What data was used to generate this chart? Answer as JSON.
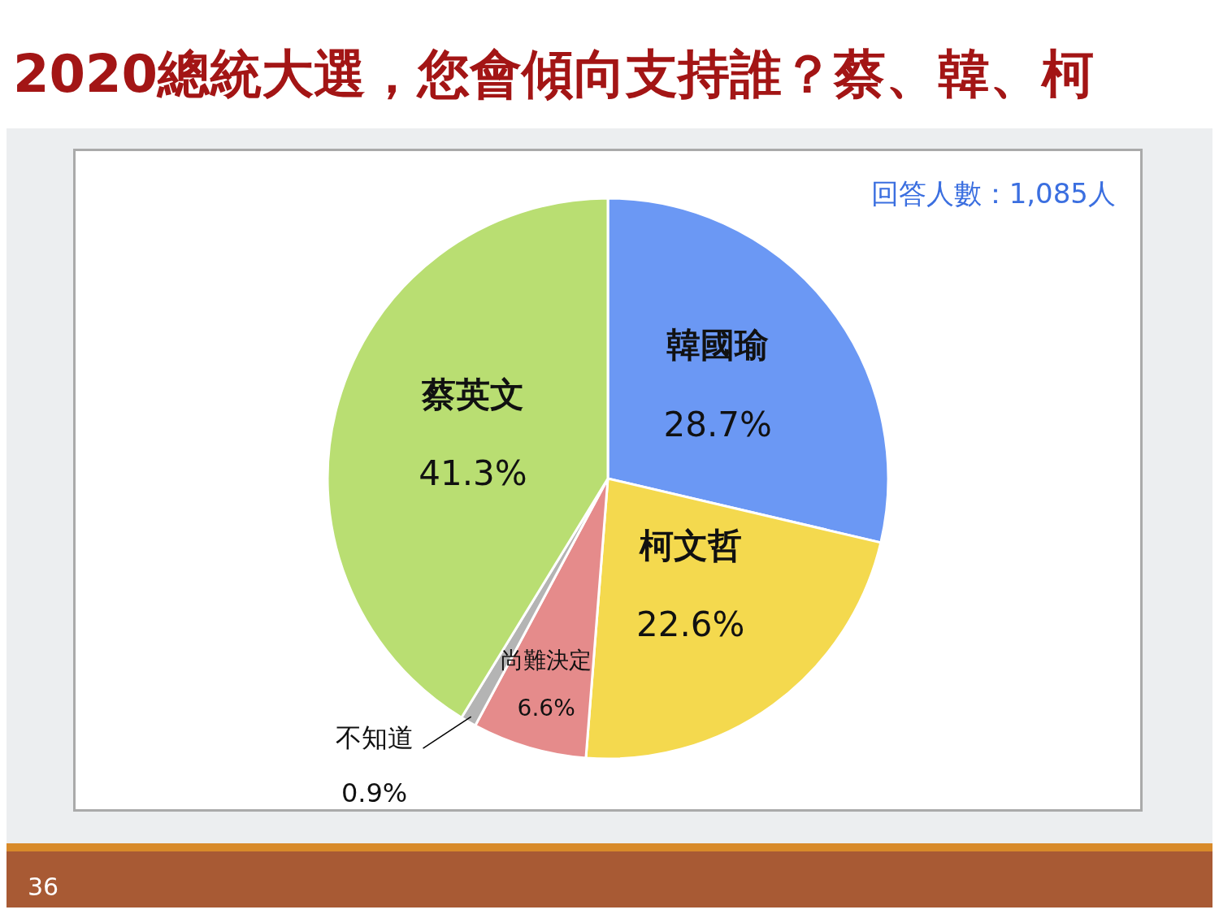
{
  "chart_data": {
    "type": "pie",
    "title": "2020總統大選，您會傾向支持誰？蔡、韓、柯",
    "categories": [
      "韓國瑜",
      "柯文哲",
      "尚難決定",
      "不知道",
      "蔡英文"
    ],
    "values": [
      28.7,
      22.6,
      6.6,
      0.9,
      41.3
    ],
    "colors": [
      "#6b98f4",
      "#f4d94e",
      "#e58b8b",
      "#b4b4b4",
      "#b9de72"
    ],
    "value_labels": [
      "28.7%",
      "22.6%",
      "6.6%",
      "0.9%",
      "41.3%"
    ],
    "annotations": [
      "回答人數：1,085人",
      "36"
    ]
  }
}
